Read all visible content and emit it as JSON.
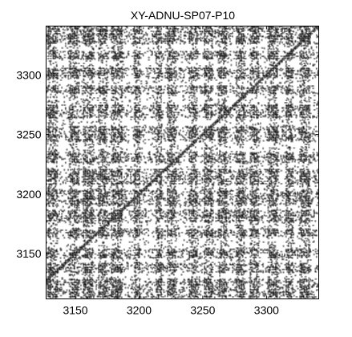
{
  "chart_data": {
    "type": "heatmap",
    "title": "XY-ADNU-SP07-P10",
    "xlabel": "",
    "ylabel": "",
    "xlim": [
      3127,
      3341
    ],
    "ylim": [
      3112,
      3341
    ],
    "x_ticks": [
      3150,
      3200,
      3250,
      3300
    ],
    "x_tick_labels": [
      "3150",
      "3200",
      "3250",
      "3300"
    ],
    "y_ticks": [
      3150,
      3200,
      3250,
      3300
    ],
    "y_tick_labels": [
      "3150",
      "3200",
      "3250",
      "3300"
    ],
    "grid": false,
    "colors": {
      "marks": "#000000",
      "background": "#ffffff",
      "frame": "#000000"
    },
    "dense_x_bands": [
      [
        3128,
        3135
      ],
      [
        3145,
        3152
      ],
      [
        3156,
        3163
      ],
      [
        3168,
        3174
      ],
      [
        3178,
        3186
      ],
      [
        3196,
        3200
      ],
      [
        3213,
        3217
      ],
      [
        3222,
        3228
      ],
      [
        3239,
        3245
      ],
      [
        3251,
        3257
      ],
      [
        3262,
        3268
      ],
      [
        3276,
        3282
      ],
      [
        3287,
        3293
      ],
      [
        3301,
        3308
      ],
      [
        3315,
        3320
      ],
      [
        3326,
        3333
      ]
    ],
    "dense_y_bands": [
      [
        3113,
        3128
      ],
      [
        3134,
        3141
      ],
      [
        3146,
        3153
      ],
      [
        3164,
        3170
      ],
      [
        3176,
        3186
      ],
      [
        3190,
        3203
      ],
      [
        3208,
        3220
      ],
      [
        3226,
        3234
      ],
      [
        3244,
        3256
      ],
      [
        3264,
        3274
      ],
      [
        3284,
        3290
      ],
      [
        3297,
        3305
      ],
      [
        3313,
        3319
      ],
      [
        3326,
        3340
      ]
    ]
  }
}
